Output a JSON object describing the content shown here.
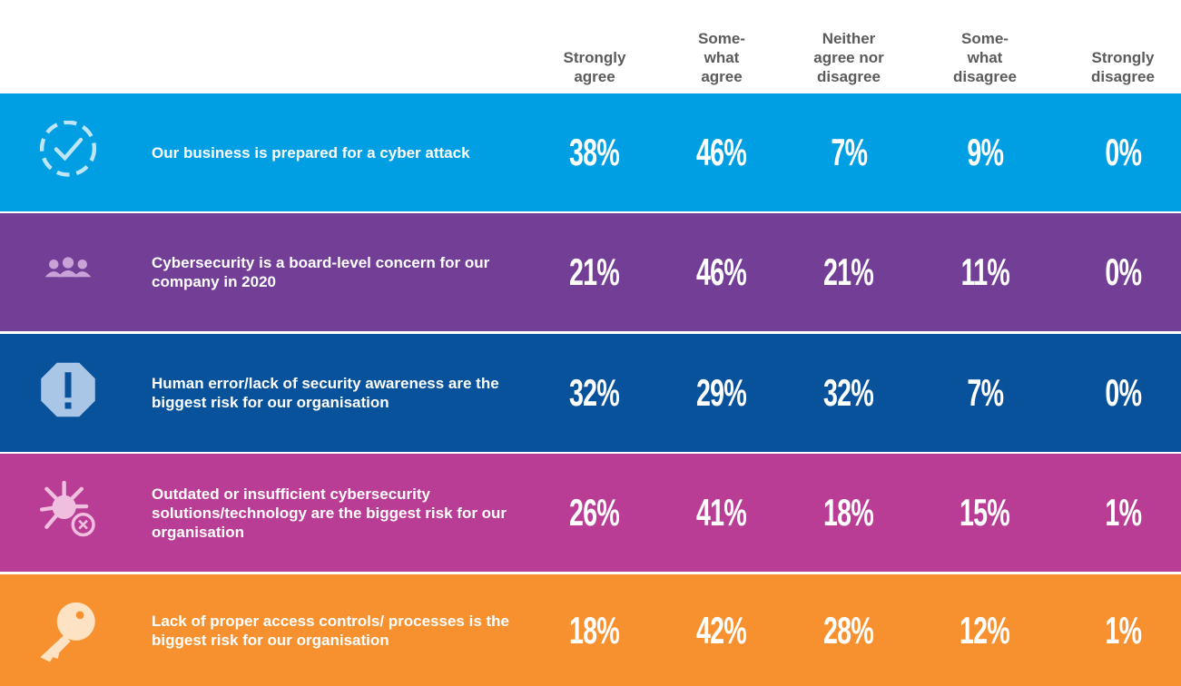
{
  "table": {
    "columns": [
      "Strongly\nagree",
      "Some-\nwhat\nagree",
      "Neither\nagree nor\ndisagree",
      "Some-\nwhat\ndisagree",
      "Strongly\ndisagree"
    ],
    "rows": [
      {
        "statement": "Our business is prepared for a cyber attack",
        "color": "#009fe3",
        "values": [
          "38%",
          "46%",
          "7%",
          "9%",
          "0%"
        ]
      },
      {
        "statement": "Cybersecurity is a board-level concern for our company in 2020",
        "color": "#723e96",
        "values": [
          "21%",
          "46%",
          "21%",
          "11%",
          "0%"
        ]
      },
      {
        "statement": "Human error/lack of security awareness are the biggest risk for our organisation",
        "color": "#07529b",
        "values": [
          "32%",
          "29%",
          "32%",
          "7%",
          "0%"
        ]
      },
      {
        "statement": "Outdated or insufficient cybersecurity solutions/technology are the biggest risk for our organisation",
        "color": "#b93d94",
        "values": [
          "26%",
          "41%",
          "18%",
          "15%",
          "1%"
        ]
      },
      {
        "statement": "Lack of proper access controls/ processes is the biggest risk for our organisation",
        "color": "#f7912f",
        "values": [
          "18%",
          "42%",
          "28%",
          "12%",
          "1%"
        ]
      }
    ]
  }
}
